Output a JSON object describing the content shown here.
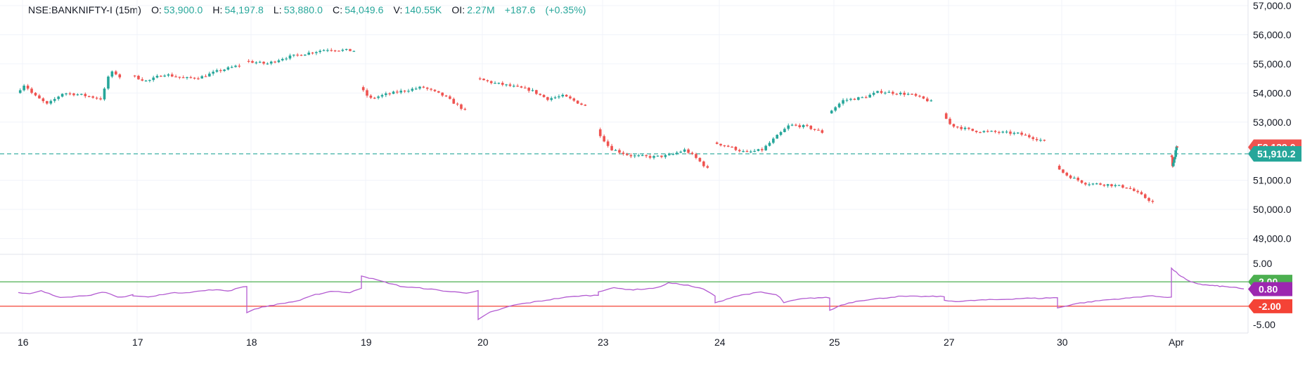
{
  "legend": {
    "symbol": "NSE:BANKNIFTY-I (15m)",
    "o_label": "O:",
    "o": "53,900.0",
    "h_label": "H:",
    "h": "54,197.8",
    "l_label": "L:",
    "l": "53,880.0",
    "c_label": "C:",
    "c": "54,049.6",
    "v_label": "V:",
    "v": "140.55K",
    "oi_label": "OI:",
    "oi": "2.27M",
    "change": "+187.6",
    "change_pct": "(+0.35%)"
  },
  "colors": {
    "up": "#26a69a",
    "down": "#ef5350",
    "indicator": "#b35bd1",
    "upper_band": "#4caf50",
    "lower_band": "#f44336",
    "current_price_line": "#26a69a",
    "grid": "#f0f3fa"
  },
  "chart_data": [
    {
      "type": "candlestick",
      "interval": "15m",
      "price_axis_ticks": [
        "57,000.0",
        "56,000.0",
        "55,000.0",
        "54,000.0",
        "53,000.0",
        "51,000.0",
        "50,000.0",
        "49,000.0"
      ],
      "ylim": [
        48700,
        57000
      ],
      "x_ticks": [
        "16",
        "17",
        "18",
        "19",
        "20",
        "23",
        "24",
        "25",
        "27",
        "30",
        "Apr"
      ],
      "price_badges": [
        {
          "value": 52139.0,
          "label": "52,139.0",
          "color": "#ef5350"
        },
        {
          "value": 51910.2,
          "label": "51,910.2",
          "color": "#26a69a"
        }
      ],
      "horizontal_line": 51910.2,
      "sessions": [
        {
          "day": "16",
          "path": [
            [
              0,
              54000
            ],
            [
              0.08,
              54300
            ],
            [
              0.16,
              53950
            ],
            [
              0.3,
              53600
            ],
            [
              0.45,
              54000
            ],
            [
              0.6,
              53950
            ],
            [
              0.75,
              53850
            ],
            [
              0.82,
              53800
            ],
            [
              0.86,
              54200
            ],
            [
              0.9,
              54700
            ],
            [
              0.95,
              54700
            ],
            [
              1,
              54550
            ]
          ]
        },
        {
          "day": "17",
          "path": [
            [
              0,
              54600
            ],
            [
              0.15,
              54400
            ],
            [
              0.3,
              54650
            ],
            [
              0.5,
              54500
            ],
            [
              0.65,
              54550
            ],
            [
              0.8,
              54750
            ],
            [
              1,
              54950
            ]
          ]
        },
        {
          "day": "18",
          "path": [
            [
              0,
              55100
            ],
            [
              0.2,
              55000
            ],
            [
              0.35,
              55200
            ],
            [
              0.55,
              55350
            ],
            [
              0.75,
              55500
            ],
            [
              1,
              55450
            ]
          ]
        },
        {
          "day": "19",
          "path": [
            [
              0,
              54200
            ],
            [
              0.1,
              53800
            ],
            [
              0.25,
              53950
            ],
            [
              0.45,
              54100
            ],
            [
              0.6,
              54200
            ],
            [
              0.8,
              53900
            ],
            [
              1,
              53400
            ]
          ]
        },
        {
          "day": "20",
          "path": [
            [
              0,
              54500
            ],
            [
              0.15,
              54350
            ],
            [
              0.3,
              54250
            ],
            [
              0.5,
              54100
            ],
            [
              0.65,
              53800
            ],
            [
              0.8,
              53900
            ],
            [
              1,
              53550
            ]
          ]
        },
        {
          "day": "23",
          "path": [
            [
              0,
              52750
            ],
            [
              0.12,
              52100
            ],
            [
              0.3,
              51850
            ],
            [
              0.5,
              51800
            ],
            [
              0.65,
              51850
            ],
            [
              0.8,
              52050
            ],
            [
              0.9,
              51750
            ],
            [
              1,
              51400
            ]
          ]
        },
        {
          "day": "24",
          "path": [
            [
              0,
              52300
            ],
            [
              0.15,
              52150
            ],
            [
              0.3,
              51950
            ],
            [
              0.45,
              52050
            ],
            [
              0.55,
              52400
            ],
            [
              0.7,
              52900
            ],
            [
              0.85,
              52850
            ],
            [
              1,
              52650
            ]
          ]
        },
        {
          "day": "25",
          "path": [
            [
              0,
              53300
            ],
            [
              0.15,
              53750
            ],
            [
              0.35,
              53850
            ],
            [
              0.5,
              54050
            ],
            [
              0.65,
              54000
            ],
            [
              0.8,
              53950
            ],
            [
              0.92,
              53800
            ],
            [
              1,
              53700
            ]
          ]
        },
        {
          "day": "27",
          "path": [
            [
              0,
              53300
            ],
            [
              0.08,
              52900
            ],
            [
              0.3,
              52700
            ],
            [
              0.55,
              52650
            ],
            [
              0.75,
              52600
            ],
            [
              1,
              52350
            ]
          ]
        },
        {
          "day": "30",
          "path": [
            [
              0,
              51500
            ],
            [
              0.1,
              51200
            ],
            [
              0.3,
              50900
            ],
            [
              0.55,
              50850
            ],
            [
              0.75,
              50750
            ],
            [
              0.9,
              50450
            ],
            [
              1,
              50250
            ]
          ]
        },
        {
          "day": "Apr",
          "path": [
            [
              0,
              51850
            ],
            [
              0.15,
              51750
            ],
            [
              0.25,
              51500
            ],
            [
              0.4,
              51600
            ],
            [
              0.55,
              51750
            ],
            [
              0.7,
              51950
            ],
            [
              0.85,
              52200
            ],
            [
              1,
              52150
            ]
          ]
        }
      ]
    },
    {
      "type": "line",
      "name": "indicator",
      "axis_ticks": [
        "5.00",
        "-5.00"
      ],
      "ylim": [
        -5,
        5
      ],
      "reference_lines": [
        {
          "value": 2.0,
          "label": "2.00",
          "color": "#4caf50"
        },
        {
          "value": -2.0,
          "label": "-2.00",
          "color": "#f44336"
        }
      ],
      "current_value": {
        "value": 0.8,
        "label": "0.80",
        "color": "#9c27b0"
      },
      "sessions": [
        {
          "day": "16",
          "path": [
            [
              0,
              0.2
            ],
            [
              0.1,
              0.0
            ],
            [
              0.2,
              0.5
            ],
            [
              0.35,
              -0.5
            ],
            [
              0.5,
              -0.4
            ],
            [
              0.65,
              -0.1
            ],
            [
              0.75,
              0.3
            ],
            [
              0.88,
              -0.6
            ],
            [
              1,
              -0.1
            ]
          ]
        },
        {
          "day": "17",
          "path": [
            [
              0,
              -0.3
            ],
            [
              0.15,
              -0.5
            ],
            [
              0.3,
              0.1
            ],
            [
              0.5,
              0.3
            ],
            [
              0.7,
              0.7
            ],
            [
              0.85,
              0.5
            ],
            [
              0.95,
              1.2
            ],
            [
              1,
              1.2
            ]
          ]
        },
        {
          "day": "18",
          "path": [
            [
              0,
              -3.0
            ],
            [
              0.1,
              -2.3
            ],
            [
              0.2,
              -1.9
            ],
            [
              0.45,
              -1.1
            ],
            [
              0.6,
              -0.1
            ],
            [
              0.75,
              0.5
            ],
            [
              0.9,
              0.2
            ],
            [
              1,
              1.0
            ]
          ]
        },
        {
          "day": "19",
          "path": [
            [
              0,
              3.0
            ],
            [
              0.15,
              2.2
            ],
            [
              0.35,
              1.2
            ],
            [
              0.55,
              0.9
            ],
            [
              0.75,
              0.4
            ],
            [
              0.9,
              0.2
            ],
            [
              1,
              0.5
            ]
          ]
        },
        {
          "day": "20",
          "path": [
            [
              0,
              -4.2
            ],
            [
              0.1,
              -3.0
            ],
            [
              0.3,
              -1.8
            ],
            [
              0.5,
              -1.2
            ],
            [
              0.7,
              -0.6
            ],
            [
              0.85,
              -0.3
            ],
            [
              1,
              -0.2
            ]
          ]
        },
        {
          "day": "23",
          "path": [
            [
              0,
              0.4
            ],
            [
              0.12,
              1.0
            ],
            [
              0.3,
              0.7
            ],
            [
              0.5,
              1.0
            ],
            [
              0.6,
              1.8
            ],
            [
              0.75,
              1.5
            ],
            [
              0.9,
              0.8
            ],
            [
              1,
              -0.3
            ]
          ]
        },
        {
          "day": "24",
          "path": [
            [
              0,
              -1.5
            ],
            [
              0.15,
              -0.5
            ],
            [
              0.25,
              -0.1
            ],
            [
              0.4,
              0.3
            ],
            [
              0.55,
              -0.2
            ],
            [
              0.6,
              -1.4
            ],
            [
              0.75,
              -0.8
            ],
            [
              0.9,
              -0.6
            ],
            [
              1,
              -0.6
            ]
          ]
        },
        {
          "day": "25",
          "path": [
            [
              0,
              -2.7
            ],
            [
              0.1,
              -1.8
            ],
            [
              0.25,
              -1.1
            ],
            [
              0.45,
              -0.7
            ],
            [
              0.6,
              -0.4
            ],
            [
              0.8,
              -0.4
            ],
            [
              1,
              -0.4
            ]
          ]
        },
        {
          "day": "27",
          "path": [
            [
              0,
              -1.1
            ],
            [
              0.15,
              -1.2
            ],
            [
              0.3,
              -1.0
            ],
            [
              0.5,
              -0.9
            ],
            [
              0.7,
              -0.7
            ],
            [
              0.85,
              -0.7
            ],
            [
              0.95,
              -0.6
            ],
            [
              1,
              -0.6
            ]
          ]
        },
        {
          "day": "30",
          "path": [
            [
              0,
              -2.3
            ],
            [
              0.15,
              -1.6
            ],
            [
              0.4,
              -1.0
            ],
            [
              0.6,
              -0.7
            ],
            [
              0.8,
              -0.3
            ],
            [
              0.95,
              -0.5
            ],
            [
              1,
              -0.5
            ]
          ]
        },
        {
          "day": "Apr",
          "path": [
            [
              0,
              4.2
            ],
            [
              0.1,
              3.2
            ],
            [
              0.25,
              2.0
            ],
            [
              0.45,
              1.5
            ],
            [
              0.65,
              1.3
            ],
            [
              0.85,
              1.1
            ],
            [
              1,
              0.8
            ]
          ]
        }
      ]
    }
  ]
}
